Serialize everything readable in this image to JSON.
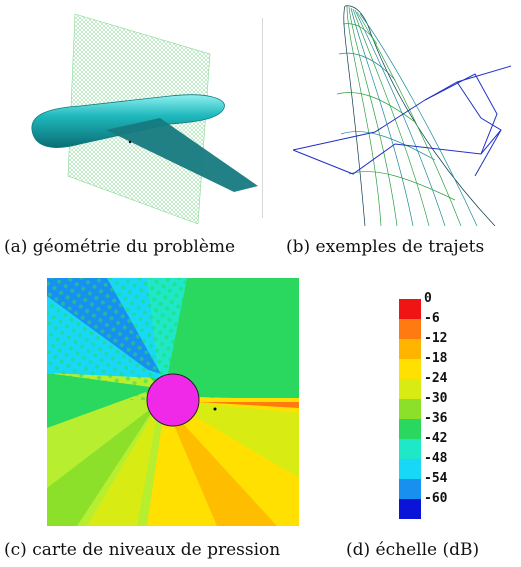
{
  "captions": {
    "a": "(a) géométrie du problème",
    "b": "(b) exemples de trajets",
    "c": "(c) carte de niveaux de pression",
    "d": "(d) échelle (dB)"
  },
  "scale": {
    "labels": [
      "0",
      "-6",
      "-12",
      "-18",
      "-24",
      "-30",
      "-36",
      "-42",
      "-48",
      "-54",
      "-60"
    ],
    "colors": [
      "#f01414",
      "#ff7a10",
      "#ffb400",
      "#ffe000",
      "#d8ec14",
      "#8ce02a",
      "#2ad860",
      "#1ee8c8",
      "#18d8f8",
      "#1890f0",
      "#0a14d8"
    ]
  },
  "colors": {
    "fuselage": "#1fa3a8",
    "plane": "#7bd48a",
    "wing": "#167a80",
    "sphere": "#f028e8",
    "paths": "#2030c8"
  }
}
